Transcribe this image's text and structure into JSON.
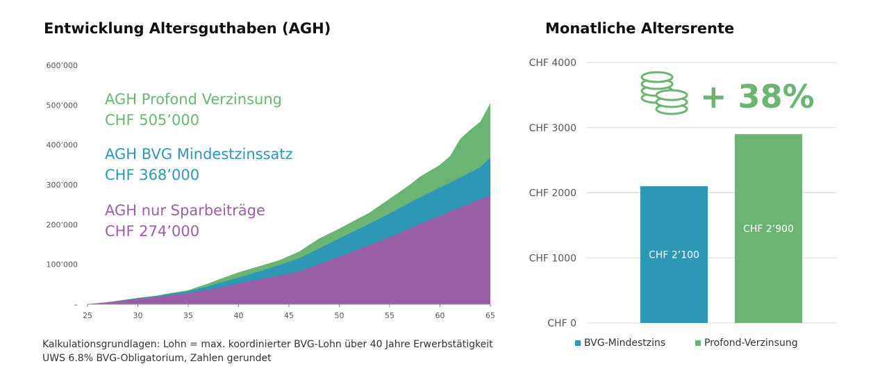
{
  "colors": {
    "sparbeitraege": "#9b5fa6",
    "bvg": "#2e97b5",
    "profond": "#6cb474",
    "axis": "#888888",
    "grid": "#d9d9d9"
  },
  "left_title": "Entwicklung Altersguthaben (AGH)",
  "right_title": "Monatliche Altersrente",
  "labels": {
    "profond_title": "AGH Profond Verzinsung",
    "profond_value": "CHF 505’000",
    "bvg_title": "AGH BVG Mindestzinssatz",
    "bvg_value": "CHF 368’000",
    "spar_title": "AGH nur Sparbeiträge",
    "spar_value": "CHF 274’000"
  },
  "increase_label": "+ 38%",
  "increase_icon": "coins-icon",
  "footnote": {
    "line1": "Kalkulationsgrundlagen: Lohn = max. koordinierter BVG-Lohn über 40 Jahre Erwerbstätigkeit",
    "line2": "UWS 6.8% BVG-Obligatorium, Zahlen gerundet"
  },
  "legend": [
    {
      "label": "BVG-Mindestzins",
      "color": "#2e97b5"
    },
    {
      "label": "Profond-Verzinsung",
      "color": "#6cb474"
    }
  ],
  "chart_data": [
    {
      "type": "area",
      "title": "Entwicklung Altersguthaben (AGH)",
      "xlabel": "",
      "ylabel": "",
      "xlim": [
        25,
        65
      ],
      "ylim": [
        0,
        600000
      ],
      "x_ticks": [
        "25",
        "30",
        "35",
        "40",
        "45",
        "50",
        "55",
        "60",
        "65"
      ],
      "y_ticks": [
        "–",
        "100’000",
        "200’000",
        "300’000",
        "400’000",
        "500’000",
        "600’000"
      ],
      "x": [
        25,
        27,
        30,
        32,
        33,
        35,
        37,
        38,
        40,
        42,
        44,
        46,
        48,
        50,
        53,
        55,
        57,
        58,
        60,
        61,
        62,
        63,
        64,
        65
      ],
      "series": [
        {
          "name": "AGH Profond Verzinsung",
          "values": [
            0,
            5000,
            16000,
            22000,
            27000,
            35000,
            52000,
            62000,
            80000,
            95000,
            110000,
            132000,
            165000,
            190000,
            230000,
            265000,
            300000,
            320000,
            350000,
            372000,
            415000,
            438000,
            458000,
            505000
          ]
        },
        {
          "name": "AGH BVG Mindestzinssatz",
          "values": [
            0,
            5000,
            15000,
            21000,
            25000,
            33000,
            45000,
            53000,
            67000,
            82000,
            98000,
            115000,
            140000,
            165000,
            202000,
            228000,
            255000,
            268000,
            293000,
            305000,
            318000,
            331000,
            344000,
            368000
          ]
        },
        {
          "name": "AGH nur Sparbeiträge",
          "values": [
            0,
            5000,
            13500,
            19000,
            22000,
            28000,
            36000,
            41000,
            52000,
            62000,
            72000,
            82000,
            100000,
            120000,
            148000,
            168000,
            190000,
            201000,
            222000,
            233000,
            243000,
            253000,
            263000,
            274000
          ]
        }
      ]
    },
    {
      "type": "bar",
      "title": "Monatliche Altersrente",
      "categories": [
        "BVG-Mindestzins",
        "Profond-Verzinsung"
      ],
      "values": [
        2100,
        2900
      ],
      "data_labels": [
        "CHF 2’100",
        "CHF 2’900"
      ],
      "ylim": [
        0,
        4000
      ],
      "y_ticks": [
        "CHF 0",
        "CHF 1000",
        "CHF 2000",
        "CHF 3000",
        "CHF 4000"
      ]
    }
  ]
}
